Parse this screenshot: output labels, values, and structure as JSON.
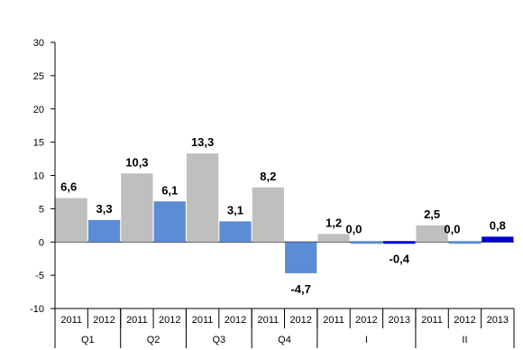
{
  "chart_data": {
    "type": "bar",
    "title": "",
    "xlabel": "",
    "ylabel": "",
    "ylim": [
      -10,
      30
    ],
    "yticks": [
      -10,
      -5,
      0,
      5,
      10,
      15,
      20,
      25,
      30
    ],
    "grid": false,
    "legend": "none",
    "groups": [
      {
        "label": "Q1",
        "bars": [
          {
            "year": "2011",
            "value": 6.6,
            "label": "6,6",
            "color": "#BFBFBF"
          },
          {
            "year": "2012",
            "value": 3.3,
            "label": "3,3",
            "color": "#5B8DD6"
          }
        ]
      },
      {
        "label": "Q2",
        "bars": [
          {
            "year": "2011",
            "value": 10.3,
            "label": "10,3",
            "color": "#BFBFBF"
          },
          {
            "year": "2012",
            "value": 6.1,
            "label": "6,1",
            "color": "#5B8DD6"
          }
        ]
      },
      {
        "label": "Q3",
        "bars": [
          {
            "year": "2011",
            "value": 13.3,
            "label": "13,3",
            "color": "#BFBFBF"
          },
          {
            "year": "2012",
            "value": 3.1,
            "label": "3,1",
            "color": "#5B8DD6"
          }
        ]
      },
      {
        "label": "Q4",
        "bars": [
          {
            "year": "2011",
            "value": 8.2,
            "label": "8,2",
            "color": "#BFBFBF"
          },
          {
            "year": "2012",
            "value": -4.7,
            "label": "-4,7",
            "color": "#5B8DD6"
          }
        ]
      },
      {
        "label": "I",
        "bars": [
          {
            "year": "2011",
            "value": 1.2,
            "label": "1,2",
            "color": "#BFBFBF"
          },
          {
            "year": "2012",
            "value": 0.0,
            "label": "0,0",
            "color": "#5B8DD6"
          },
          {
            "year": "2013",
            "value": -0.4,
            "label": "-0,4",
            "color": "#0000CC"
          }
        ]
      },
      {
        "label": "II",
        "bars": [
          {
            "year": "2011",
            "value": 2.5,
            "label": "2,5",
            "color": "#BFBFBF"
          },
          {
            "year": "2012",
            "value": 0.0,
            "label": "0,0",
            "color": "#5B8DD6"
          },
          {
            "year": "2013",
            "value": 0.8,
            "label": "0,8",
            "color": "#0000CC"
          }
        ]
      }
    ]
  }
}
